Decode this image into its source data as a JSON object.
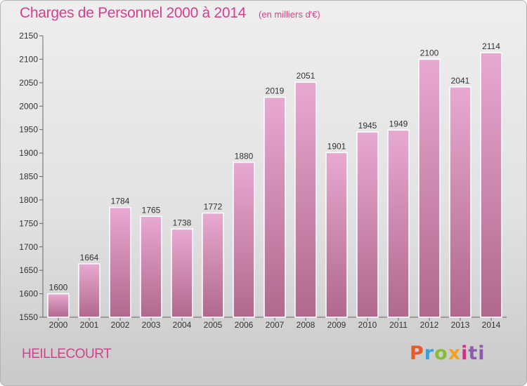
{
  "header": {
    "title": "Charges de Personnel 2000 à 2014",
    "subtitle": "(en milliers d'€)"
  },
  "commune": "HEILLECOURT",
  "logo": {
    "letters": [
      "P",
      "r",
      "o",
      "x",
      "i",
      "ti"
    ]
  },
  "colors": {
    "title": "#d63f8e",
    "bar_top": "#e8a9d0",
    "bar_bottom": "#b0688e"
  },
  "chart_data": {
    "type": "bar",
    "title": "Charges de Personnel 2000 à 2014",
    "subtitle": "(en milliers d'€)",
    "xlabel": "",
    "ylabel": "",
    "categories": [
      "2000",
      "2001",
      "2002",
      "2003",
      "2004",
      "2005",
      "2006",
      "2007",
      "2008",
      "2009",
      "2010",
      "2011",
      "2012",
      "2013",
      "2014"
    ],
    "values": [
      1600,
      1664,
      1784,
      1765,
      1738,
      1772,
      1880,
      2019,
      2051,
      1901,
      1945,
      1949,
      2100,
      2041,
      2114
    ],
    "ylim": [
      1550,
      2150
    ],
    "yticks": [
      1550,
      1600,
      1650,
      1700,
      1750,
      1800,
      1850,
      1900,
      1950,
      2000,
      2050,
      2100,
      2150
    ],
    "grid": false,
    "legend": "none",
    "data_labels": true
  }
}
